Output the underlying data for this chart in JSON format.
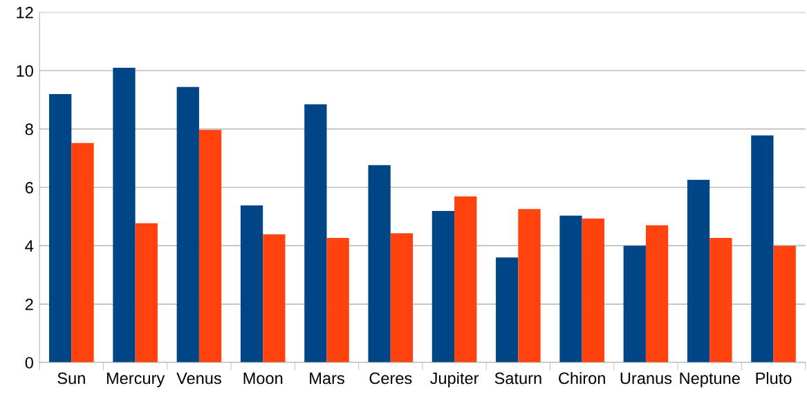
{
  "chart_data": {
    "type": "bar",
    "categories": [
      "Sun",
      "Mercury",
      "Venus",
      "Moon",
      "Mars",
      "Ceres",
      "Jupiter",
      "Saturn",
      "Chiron",
      "Uranus",
      "Neptune",
      "Pluto"
    ],
    "series": [
      {
        "color": "#004586",
        "values": [
          9.2,
          10.1,
          9.44,
          5.38,
          8.85,
          6.76,
          5.19,
          3.6,
          5.03,
          4.0,
          6.26,
          7.78
        ]
      },
      {
        "color": "#ff420e",
        "values": [
          7.52,
          4.77,
          7.97,
          4.39,
          4.27,
          4.43,
          5.69,
          5.26,
          4.93,
          4.7,
          4.27,
          4.0
        ]
      }
    ],
    "ylim": [
      0,
      12
    ],
    "yticks": [
      0,
      2,
      4,
      6,
      8,
      10,
      12
    ],
    "grid": "y"
  }
}
